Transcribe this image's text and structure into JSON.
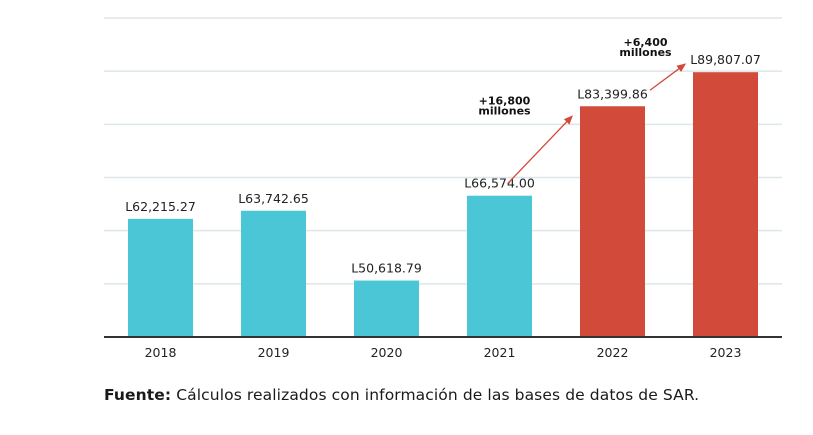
{
  "chart_data": {
    "type": "bar",
    "title": "",
    "xlabel": "",
    "ylabel": "",
    "categories": [
      "2018",
      "2019",
      "2020",
      "2021",
      "2022",
      "2023"
    ],
    "values": [
      62215.27,
      63742.65,
      50618.79,
      66574.0,
      83399.86,
      89807.07
    ],
    "value_labels": [
      "L62,215.27",
      "L63,742.65",
      "L50,618.79",
      "L66,574.00",
      "L83,399.86",
      "L89,807.07"
    ],
    "bar_colors": [
      "#4ac6d6",
      "#4ac6d6",
      "#4ac6d6",
      "#4ac6d6",
      "#d24a3a",
      "#d24a3a"
    ],
    "ylim": [
      40000,
      100000
    ],
    "gridlines": [
      50000,
      60000,
      70000,
      80000,
      90000,
      100000
    ],
    "grid": true,
    "y_tick_labels_visible": false,
    "annotations": [
      {
        "from": "2021",
        "to": "2022",
        "line1": "+16,800",
        "line2": "millones"
      },
      {
        "from": "2022",
        "to": "2023",
        "line1": "+6,400",
        "line2": "millones"
      }
    ],
    "colors": {
      "grid": "#dde6ea",
      "axis": "#333333",
      "arrow": "#d24a3a"
    }
  },
  "source": {
    "label": "Fuente:",
    "text": " Cálculos realizados con información de las bases de datos de SAR."
  }
}
